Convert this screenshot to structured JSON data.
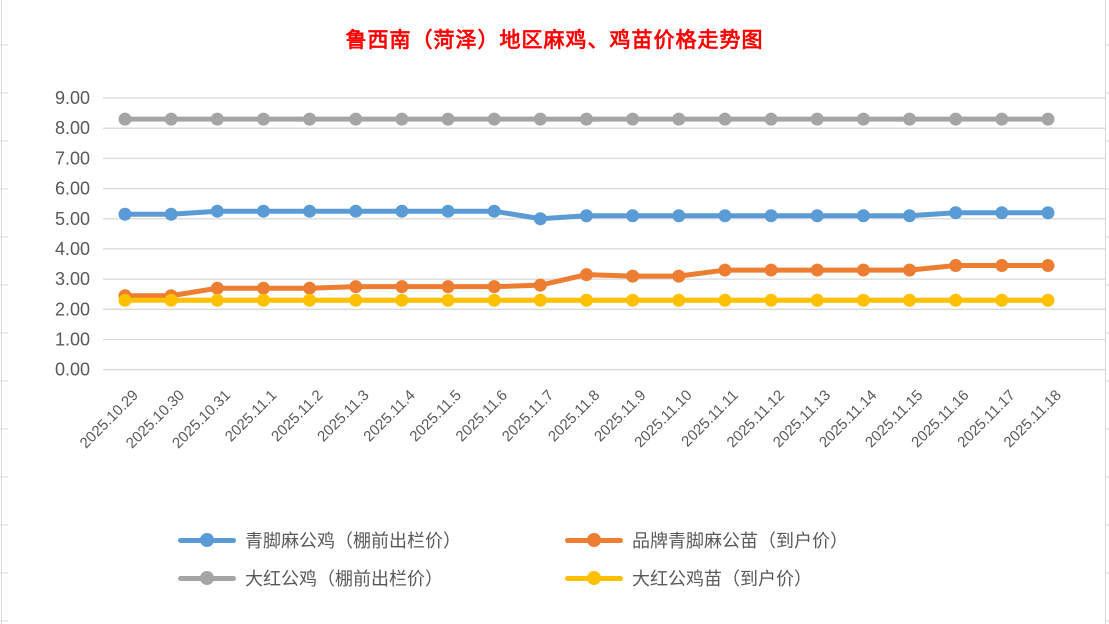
{
  "chart_data": {
    "type": "line",
    "title": "鲁西南（菏泽）地区麻鸡、鸡苗价格走势图",
    "title_color": "#FF0000",
    "x": [
      "2025.10.29",
      "2025.10.30",
      "2025.10.31",
      "2025.11.1",
      "2025.11.2",
      "2025.11.3",
      "2025.11.4",
      "2025.11.5",
      "2025.11.6",
      "2025.11.7",
      "2025.11.8",
      "2025.11.9",
      "2025.11.10",
      "2025.11.11",
      "2025.11.12",
      "2025.11.13",
      "2025.11.14",
      "2025.11.15",
      "2025.11.16",
      "2025.11.17",
      "2025.11.18"
    ],
    "series": [
      {
        "name": "青脚麻公鸡（棚前出栏价）",
        "color": "#5B9BD5",
        "values": [
          5.15,
          5.15,
          5.25,
          5.25,
          5.25,
          5.25,
          5.25,
          5.25,
          5.25,
          5.0,
          5.1,
          5.1,
          5.1,
          5.1,
          5.1,
          5.1,
          5.1,
          5.1,
          5.2,
          5.2,
          5.2
        ]
      },
      {
        "name": "品牌青脚麻公苗（到户价）",
        "color": "#ED7D31",
        "values": [
          2.45,
          2.45,
          2.7,
          2.7,
          2.7,
          2.75,
          2.75,
          2.75,
          2.75,
          2.8,
          3.15,
          3.1,
          3.1,
          3.3,
          3.3,
          3.3,
          3.3,
          3.3,
          3.45,
          3.45,
          3.45
        ]
      },
      {
        "name": "大红公鸡（棚前出栏价）",
        "color": "#A5A5A5",
        "values": [
          8.3,
          8.3,
          8.3,
          8.3,
          8.3,
          8.3,
          8.3,
          8.3,
          8.3,
          8.3,
          8.3,
          8.3,
          8.3,
          8.3,
          8.3,
          8.3,
          8.3,
          8.3,
          8.3,
          8.3,
          8.3
        ]
      },
      {
        "name": "大红公鸡苗（到户价）",
        "color": "#FFC000",
        "values": [
          2.3,
          2.3,
          2.3,
          2.3,
          2.3,
          2.3,
          2.3,
          2.3,
          2.3,
          2.3,
          2.3,
          2.3,
          2.3,
          2.3,
          2.3,
          2.3,
          2.3,
          2.3,
          2.3,
          2.3,
          2.3
        ]
      }
    ],
    "ylim": [
      0,
      9
    ],
    "ytick_labels": [
      "0.00",
      "1.00",
      "2.00",
      "3.00",
      "4.00",
      "5.00",
      "6.00",
      "7.00",
      "8.00",
      "9.00"
    ],
    "grid": "horizontal",
    "gridline_color": "#D9D9D9",
    "axis_label_color": "#595959",
    "legend_position": "bottom",
    "marker": "circle",
    "x_label_rotation": -45
  }
}
